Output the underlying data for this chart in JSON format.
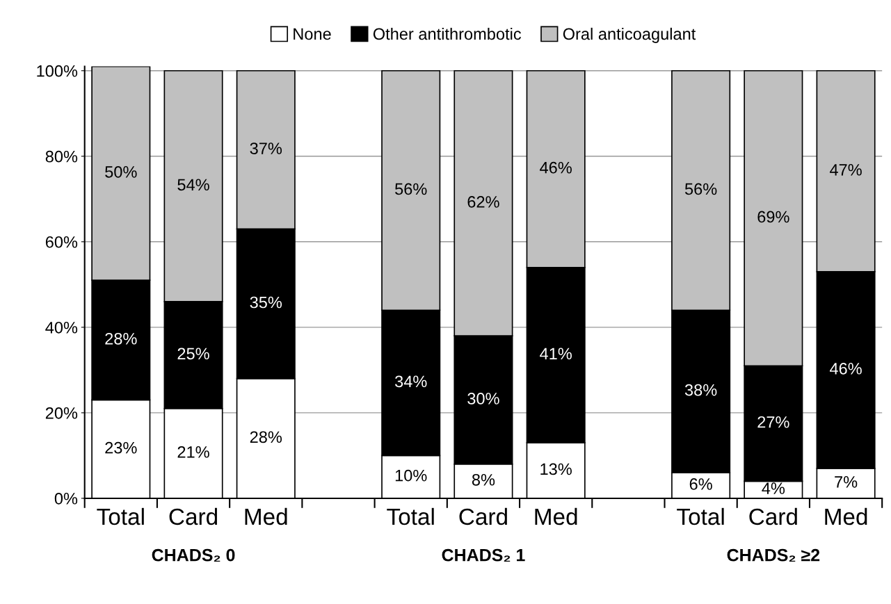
{
  "chart_data": {
    "type": "bar",
    "stacked": true,
    "categories": [
      "Total",
      "Card",
      "Med",
      null,
      "Total",
      "Card",
      "Med",
      null,
      "Total",
      "Card",
      "Med"
    ],
    "series": [
      {
        "name": "None",
        "color": "#ffffff",
        "values": [
          23,
          21,
          28,
          null,
          10,
          8,
          13,
          null,
          6,
          4,
          7
        ],
        "value_labels": [
          "23%",
          "21%",
          "28%",
          null,
          "10%",
          "8%",
          "13%",
          null,
          "6%",
          "4%",
          "7%"
        ]
      },
      {
        "name": "Other antithrombotic",
        "color": "#000000",
        "values": [
          28,
          25,
          35,
          null,
          34,
          30,
          41,
          null,
          38,
          27,
          46
        ],
        "value_labels": [
          "28%",
          "25%",
          "35%",
          null,
          "34%",
          "30%",
          "41%",
          null,
          "38%",
          "27%",
          "46%"
        ]
      },
      {
        "name": "Oral anticoagulant",
        "color": "#c0c0c0",
        "values": [
          50,
          54,
          37,
          null,
          56,
          62,
          46,
          null,
          56,
          69,
          47
        ],
        "value_labels": [
          "50%",
          "54%",
          "37%",
          null,
          "56%",
          "62%",
          "46%",
          null,
          "56%",
          "69%",
          "47%"
        ]
      }
    ],
    "ylim": [
      0,
      101
    ],
    "yticks": [
      {
        "value": 0,
        "label": "0%"
      },
      {
        "value": 20,
        "label": "20%"
      },
      {
        "value": 40,
        "label": "40%"
      },
      {
        "value": 60,
        "label": "60%"
      },
      {
        "value": 80,
        "label": "80%"
      },
      {
        "value": 100,
        "label": "100%"
      }
    ],
    "grid": "y",
    "legend": "top",
    "marker": "square",
    "annotations": [
      "CHADS₂ 0",
      "CHADS₂ 1",
      "CHADS₂ ≥2"
    ]
  }
}
